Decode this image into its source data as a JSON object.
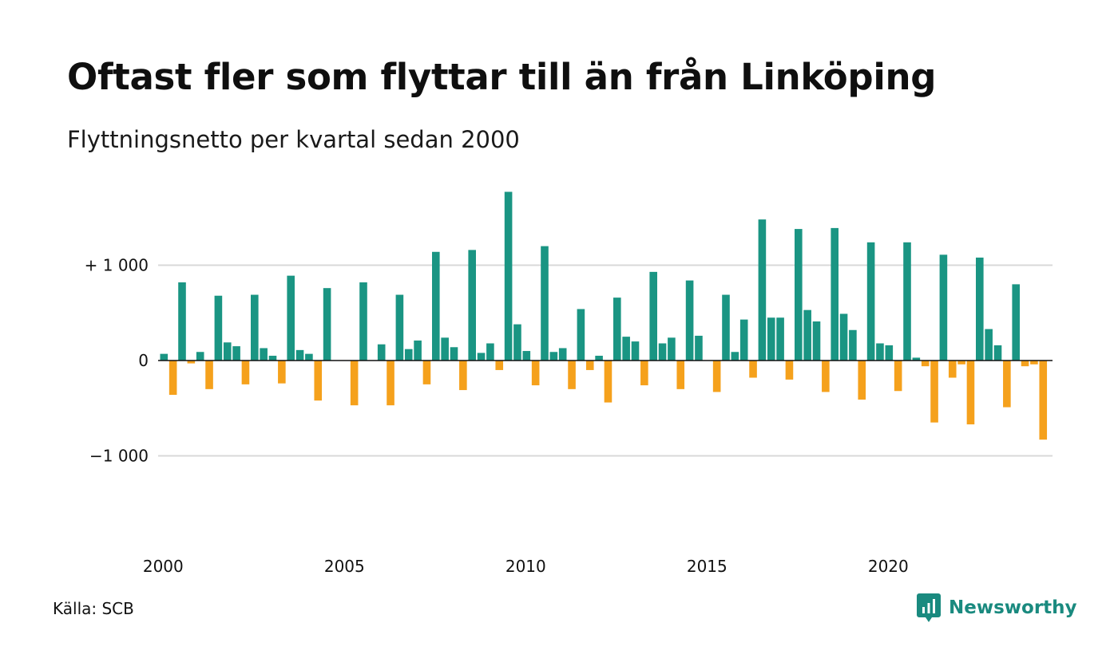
{
  "title": "Oftast fler som flyttar till än från Linköping",
  "subtitle": "Flyttningsnetto per kvartal sedan 2000",
  "source": "Källa: SCB",
  "brand": {
    "name": "Newsworthy",
    "color": "#1a8a7f",
    "icon": "newsworthy-bar-chart-logo-icon"
  },
  "colors": {
    "positive": "#1a9583",
    "negative": "#f5a11c",
    "grid": "#d9d9d9",
    "baseline": "#111111"
  },
  "chart_data": {
    "type": "bar",
    "x_start": "2000 Q1",
    "xtick_labels": [
      "2000",
      "2005",
      "2010",
      "2015",
      "2020"
    ],
    "ytick_labels": [
      "+ 1 000",
      "0",
      "−1 000"
    ],
    "yticks": [
      1000,
      0,
      -1000
    ],
    "ylim": [
      -1500,
      1800
    ],
    "grid": true,
    "values": [
      70,
      -360,
      820,
      -30,
      90,
      -300,
      680,
      190,
      150,
      -250,
      690,
      130,
      50,
      -240,
      890,
      110,
      70,
      -420,
      760,
      0,
      0,
      -470,
      820,
      0,
      170,
      -470,
      690,
      120,
      210,
      -250,
      1140,
      240,
      140,
      -310,
      1160,
      80,
      180,
      -100,
      1770,
      380,
      100,
      -260,
      1200,
      90,
      130,
      -300,
      540,
      -100,
      50,
      -440,
      660,
      250,
      200,
      -260,
      930,
      180,
      240,
      -300,
      840,
      260,
      0,
      -330,
      690,
      90,
      430,
      -180,
      1480,
      450,
      450,
      -200,
      1380,
      530,
      410,
      -330,
      1390,
      490,
      320,
      -410,
      1240,
      180,
      160,
      -320,
      1240,
      30,
      -60,
      -650,
      1110,
      -180,
      -40,
      -670,
      1080,
      330,
      160,
      -490,
      800,
      -60,
      -40,
      -830
    ]
  }
}
